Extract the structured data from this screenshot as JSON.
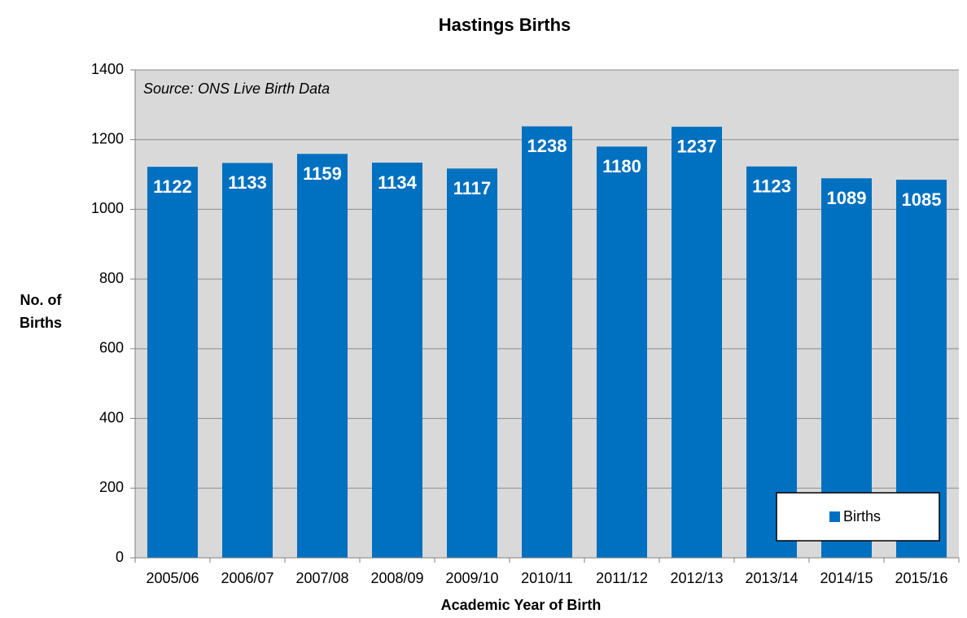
{
  "chart_data": {
    "type": "bar",
    "title": "Hastings Births",
    "annotation": "Source: ONS Live Birth Data",
    "x_label": "Academic Year of Birth",
    "y_label": [
      "No. of",
      "Births"
    ],
    "categories": [
      "2005/06",
      "2006/07",
      "2007/08",
      "2008/09",
      "2009/10",
      "2010/11",
      "2011/12",
      "2012/13",
      "2013/14",
      "2014/15",
      "2015/16"
    ],
    "series": [
      {
        "name": "Births",
        "color": "#0070c0",
        "values": [
          1122,
          1133,
          1159,
          1134,
          1117,
          1238,
          1180,
          1237,
          1123,
          1089,
          1085
        ]
      }
    ],
    "ylim": [
      0,
      1400
    ],
    "yticks": [
      0,
      200,
      400,
      600,
      800,
      1000,
      1200,
      1400
    ],
    "grid": true,
    "legend": "lower right",
    "background": "#d9d9d9"
  }
}
